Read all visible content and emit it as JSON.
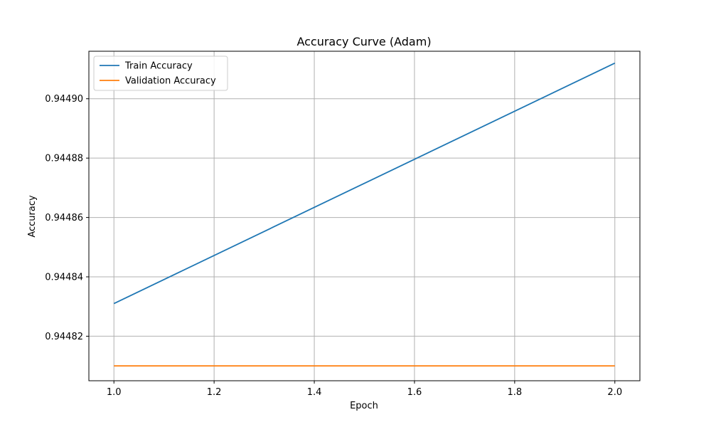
{
  "chart_data": {
    "type": "line",
    "title": "Accuracy Curve (Adam)",
    "xlabel": "Epoch",
    "ylabel": "Accuracy",
    "x": [
      1.0,
      2.0
    ],
    "xlim": [
      0.95,
      2.05
    ],
    "ylim": [
      0.944805,
      0.944916
    ],
    "xticks": [
      1.0,
      1.2,
      1.4,
      1.6,
      1.8,
      2.0
    ],
    "xtick_labels": [
      "1.0",
      "1.2",
      "1.4",
      "1.6",
      "1.8",
      "2.0"
    ],
    "yticks": [
      0.94482,
      0.94484,
      0.94486,
      0.94488,
      0.9449
    ],
    "ytick_labels": [
      "0.94482",
      "0.94484",
      "0.94486",
      "0.94488",
      "0.94490"
    ],
    "grid": true,
    "legend_position": "upper-left",
    "series": [
      {
        "name": "Train Accuracy",
        "color": "#1f77b4",
        "values": [
          0.944831,
          0.944912
        ]
      },
      {
        "name": "Validation Accuracy",
        "color": "#ff7f0e",
        "values": [
          0.94481,
          0.94481
        ]
      }
    ]
  }
}
